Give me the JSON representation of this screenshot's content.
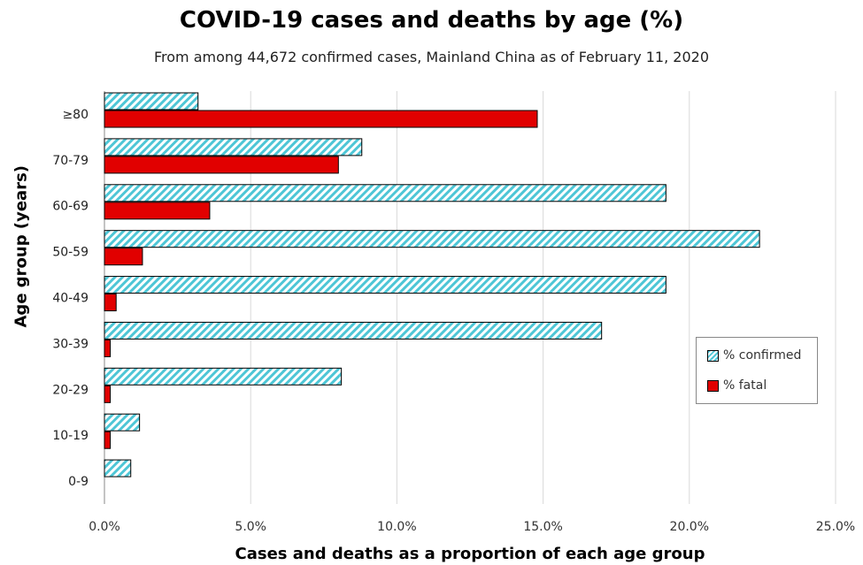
{
  "chart_data": {
    "type": "bar",
    "orientation": "horizontal",
    "title": "COVID-19 cases and deaths by age (%)",
    "subtitle": "From among 44,672 confirmed cases, Mainland China as of February 11, 2020",
    "xlabel": "Cases and deaths as a proportion of each age group",
    "ylabel": "Age group (years)",
    "categories": [
      "0-9",
      "10-19",
      "20-29",
      "30-39",
      "40-49",
      "50-59",
      "60-69",
      "70-79",
      "≥80"
    ],
    "series": [
      {
        "name": "% confirmed",
        "color": "#4ec6d6",
        "pattern": "diagonal-hatch",
        "values": [
          0.9,
          1.2,
          8.1,
          17.0,
          19.2,
          22.4,
          19.2,
          8.8,
          3.2
        ]
      },
      {
        "name": "% fatal",
        "color": "#e10000",
        "values": [
          0.0,
          0.2,
          0.2,
          0.2,
          0.4,
          1.3,
          3.6,
          8.0,
          14.8
        ]
      }
    ],
    "xlim": [
      0,
      25
    ],
    "xticks": [
      "0.0%",
      "5.0%",
      "10.0%",
      "15.0%",
      "20.0%",
      "25.0%"
    ],
    "grid": "vertical",
    "legend_position": "right"
  }
}
